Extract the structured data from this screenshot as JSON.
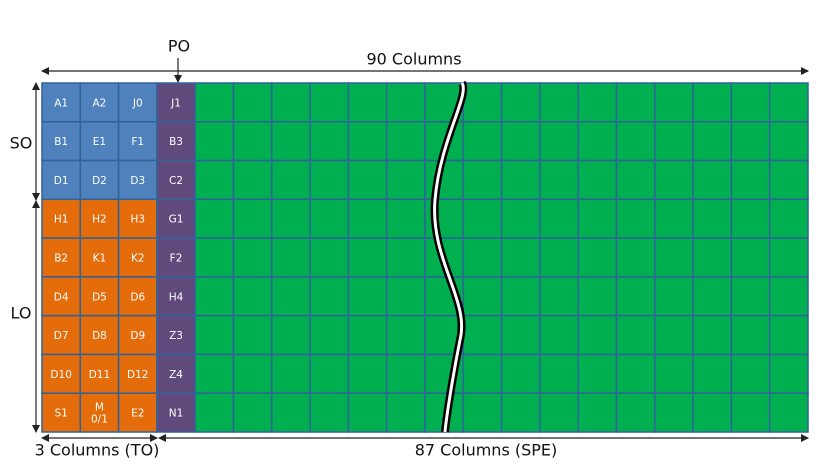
{
  "labels": {
    "po": "PO",
    "total_columns": "90 Columns",
    "so": "SO",
    "lo": "LO",
    "to_columns": "3 Columns (TO)",
    "spe_columns": "87 Columns (SPE)"
  },
  "table": {
    "rows": [
      [
        "A1",
        "A2",
        "J0",
        "J1"
      ],
      [
        "B1",
        "E1",
        "F1",
        "B3"
      ],
      [
        "D1",
        "D2",
        "D3",
        "C2"
      ],
      [
        "H1",
        "H2",
        "H3",
        "G1"
      ],
      [
        "B2",
        "K1",
        "K2",
        "F2"
      ],
      [
        "D4",
        "D5",
        "D6",
        "H4"
      ],
      [
        "D7",
        "D8",
        "D9",
        "Z3"
      ],
      [
        "D10",
        "D11",
        "D12",
        "Z4"
      ],
      [
        "S1",
        "M\n0/1",
        "E2",
        "N1"
      ]
    ]
  }
}
